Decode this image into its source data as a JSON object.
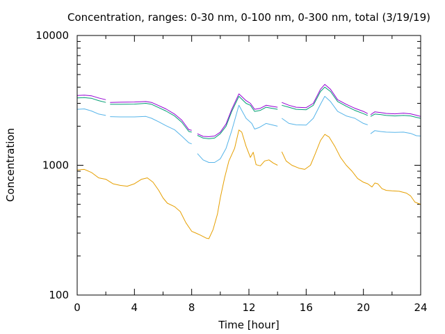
{
  "chart_data": {
    "type": "line",
    "title": "Concentration, ranges: 0-30 nm, 0-100 nm, 0-300 nm, total (3/19/19)",
    "xlabel": "Time [hour]",
    "ylabel": "Concentration",
    "xlim": [
      0,
      24
    ],
    "ylim": [
      100,
      10000
    ],
    "yscale": "log",
    "grid": false,
    "legend": "none",
    "x_ticks": [
      "0",
      "4",
      "8",
      "12",
      "16",
      "20",
      "24"
    ],
    "y_ticks": [
      "100",
      "1000",
      "10000"
    ],
    "series": [
      {
        "color": "#e69f00",
        "segments": [
          [
            [
              0,
              920
            ],
            [
              0.5,
              930
            ],
            [
              1,
              880
            ],
            [
              1.5,
              800
            ],
            [
              2,
              780
            ],
            [
              2.5,
              720
            ],
            [
              3,
              700
            ],
            [
              3.5,
              690
            ],
            [
              4,
              720
            ],
            [
              4.5,
              780
            ],
            [
              4.9,
              800
            ],
            [
              5.3,
              740
            ],
            [
              5.7,
              640
            ],
            [
              6,
              560
            ],
            [
              6.3,
              510
            ],
            [
              6.8,
              480
            ],
            [
              7.2,
              440
            ],
            [
              7.6,
              360
            ],
            [
              8,
              310
            ],
            [
              8.3,
              300
            ],
            [
              8.6,
              290
            ],
            [
              9,
              275
            ],
            [
              9.2,
              272
            ],
            [
              9.5,
              320
            ],
            [
              9.8,
              420
            ],
            [
              10,
              560
            ],
            [
              10.3,
              800
            ],
            [
              10.6,
              1080
            ],
            [
              11,
              1350
            ],
            [
              11.3,
              1870
            ],
            [
              11.5,
              1800
            ],
            [
              11.8,
              1400
            ],
            [
              12.1,
              1150
            ],
            [
              12.3,
              1260
            ],
            [
              12.5,
              1010
            ],
            [
              12.8,
              990
            ],
            [
              13.1,
              1080
            ],
            [
              13.4,
              1100
            ],
            [
              13.7,
              1040
            ],
            [
              14,
              1000
            ]
          ],
          [
            [
              14.3,
              1270
            ],
            [
              14.6,
              1080
            ],
            [
              15,
              1000
            ],
            [
              15.5,
              950
            ],
            [
              15.9,
              930
            ],
            [
              16.3,
              1000
            ],
            [
              16.6,
              1200
            ],
            [
              17,
              1550
            ],
            [
              17.3,
              1730
            ],
            [
              17.6,
              1650
            ],
            [
              18,
              1400
            ],
            [
              18.4,
              1150
            ],
            [
              18.8,
              1000
            ],
            [
              19.2,
              900
            ],
            [
              19.6,
              790
            ],
            [
              20,
              740
            ],
            [
              20.3,
              720
            ],
            [
              20.6,
              680
            ],
            [
              20.8,
              730
            ],
            [
              21,
              720
            ],
            [
              21.3,
              660
            ],
            [
              21.6,
              640
            ],
            [
              22,
              635
            ],
            [
              22.5,
              630
            ],
            [
              23,
              610
            ],
            [
              23.3,
              580
            ],
            [
              23.6,
              520
            ],
            [
              24,
              500
            ]
          ]
        ]
      },
      {
        "color": "#56b4e9",
        "segments": [
          [
            [
              0,
              2700
            ],
            [
              0.5,
              2720
            ],
            [
              1,
              2620
            ],
            [
              1.5,
              2480
            ],
            [
              2,
              2420
            ]
          ],
          [
            [
              2.3,
              2370
            ],
            [
              3,
              2360
            ],
            [
              4,
              2360
            ],
            [
              4.8,
              2380
            ],
            [
              5.2,
              2300
            ],
            [
              5.7,
              2160
            ],
            [
              6.2,
              2020
            ],
            [
              6.8,
              1880
            ],
            [
              7.3,
              1680
            ],
            [
              7.8,
              1490
            ],
            [
              8,
              1460
            ]
          ],
          [
            [
              8.4,
              1230
            ],
            [
              8.8,
              1100
            ],
            [
              9.2,
              1050
            ],
            [
              9.6,
              1050
            ],
            [
              10,
              1120
            ],
            [
              10.4,
              1350
            ],
            [
              10.8,
              1850
            ],
            [
              11.3,
              2900
            ],
            [
              11.8,
              2300
            ],
            [
              12.2,
              2100
            ],
            [
              12.4,
              1900
            ],
            [
              12.7,
              1950
            ],
            [
              13.2,
              2100
            ],
            [
              13.6,
              2050
            ],
            [
              14,
              2000
            ]
          ],
          [
            [
              14.3,
              2300
            ],
            [
              14.8,
              2100
            ],
            [
              15.3,
              2050
            ],
            [
              16,
              2040
            ],
            [
              16.5,
              2300
            ],
            [
              17,
              2950
            ],
            [
              17.3,
              3400
            ],
            [
              17.7,
              3100
            ],
            [
              18.2,
              2600
            ],
            [
              18.8,
              2400
            ],
            [
              19.4,
              2300
            ],
            [
              20,
              2100
            ],
            [
              20.3,
              2050
            ]
          ],
          [
            [
              20.5,
              1750
            ],
            [
              20.8,
              1850
            ],
            [
              21.2,
              1820
            ],
            [
              21.6,
              1800
            ],
            [
              22.2,
              1790
            ],
            [
              22.8,
              1800
            ],
            [
              23.3,
              1760
            ],
            [
              23.7,
              1690
            ],
            [
              24,
              1680
            ]
          ]
        ]
      },
      {
        "color": "#009e73",
        "segments": [
          [
            [
              0,
              3300
            ],
            [
              0.5,
              3320
            ],
            [
              1,
              3280
            ],
            [
              1.5,
              3150
            ],
            [
              2,
              3050
            ]
          ],
          [
            [
              2.3,
              2950
            ],
            [
              3,
              2950
            ],
            [
              4,
              2960
            ],
            [
              4.8,
              3000
            ],
            [
              5.2,
              2950
            ],
            [
              5.7,
              2780
            ],
            [
              6.2,
              2620
            ],
            [
              6.8,
              2400
            ],
            [
              7.3,
              2150
            ],
            [
              7.8,
              1820
            ],
            [
              8,
              1800
            ]
          ],
          [
            [
              8.4,
              1700
            ],
            [
              8.8,
              1620
            ],
            [
              9.2,
              1600
            ],
            [
              9.6,
              1620
            ],
            [
              10,
              1750
            ],
            [
              10.4,
              2000
            ],
            [
              10.8,
              2600
            ],
            [
              11.3,
              3400
            ],
            [
              11.8,
              3000
            ],
            [
              12.1,
              2900
            ],
            [
              12.4,
              2600
            ],
            [
              12.8,
              2650
            ],
            [
              13.2,
              2800
            ],
            [
              13.6,
              2750
            ],
            [
              14,
              2700
            ]
          ],
          [
            [
              14.3,
              2900
            ],
            [
              14.8,
              2800
            ],
            [
              15.3,
              2700
            ],
            [
              16,
              2680
            ],
            [
              16.5,
              2900
            ],
            [
              17,
              3700
            ],
            [
              17.3,
              4000
            ],
            [
              17.7,
              3700
            ],
            [
              18.2,
              3100
            ],
            [
              18.8,
              2850
            ],
            [
              19.4,
              2650
            ],
            [
              20,
              2500
            ],
            [
              20.3,
              2420
            ]
          ],
          [
            [
              20.5,
              2380
            ],
            [
              20.8,
              2480
            ],
            [
              21.2,
              2460
            ],
            [
              21.6,
              2420
            ],
            [
              22.2,
              2400
            ],
            [
              22.8,
              2420
            ],
            [
              23.3,
              2400
            ],
            [
              23.7,
              2340
            ],
            [
              24,
              2300
            ]
          ]
        ]
      },
      {
        "color": "#9400d3",
        "segments": [
          [
            [
              0,
              3450
            ],
            [
              0.5,
              3470
            ],
            [
              1,
              3430
            ],
            [
              1.5,
              3300
            ],
            [
              2,
              3200
            ]
          ],
          [
            [
              2.3,
              3050
            ],
            [
              3,
              3060
            ],
            [
              4,
              3070
            ],
            [
              4.8,
              3100
            ],
            [
              5.2,
              3050
            ],
            [
              5.7,
              2880
            ],
            [
              6.2,
              2720
            ],
            [
              6.8,
              2480
            ],
            [
              7.3,
              2230
            ],
            [
              7.8,
              1880
            ],
            [
              8,
              1860
            ]
          ],
          [
            [
              8.4,
              1750
            ],
            [
              8.8,
              1670
            ],
            [
              9.2,
              1660
            ],
            [
              9.6,
              1680
            ],
            [
              10,
              1800
            ],
            [
              10.4,
              2080
            ],
            [
              10.8,
              2700
            ],
            [
              11.3,
              3550
            ],
            [
              11.8,
              3150
            ],
            [
              12.1,
              3000
            ],
            [
              12.4,
              2700
            ],
            [
              12.8,
              2750
            ],
            [
              13.2,
              2900
            ],
            [
              13.6,
              2850
            ],
            [
              14,
              2800
            ]
          ],
          [
            [
              14.3,
              3050
            ],
            [
              14.8,
              2900
            ],
            [
              15.3,
              2800
            ],
            [
              16,
              2780
            ],
            [
              16.5,
              3000
            ],
            [
              17,
              3850
            ],
            [
              17.3,
              4200
            ],
            [
              17.7,
              3850
            ],
            [
              18.2,
              3200
            ],
            [
              18.8,
              2950
            ],
            [
              19.4,
              2750
            ],
            [
              20,
              2600
            ],
            [
              20.3,
              2500
            ]
          ],
          [
            [
              20.5,
              2450
            ],
            [
              20.8,
              2580
            ],
            [
              21.2,
              2550
            ],
            [
              21.6,
              2510
            ],
            [
              22.2,
              2490
            ],
            [
              22.8,
              2520
            ],
            [
              23.3,
              2490
            ],
            [
              23.7,
              2430
            ],
            [
              24,
              2380
            ]
          ]
        ]
      }
    ]
  }
}
